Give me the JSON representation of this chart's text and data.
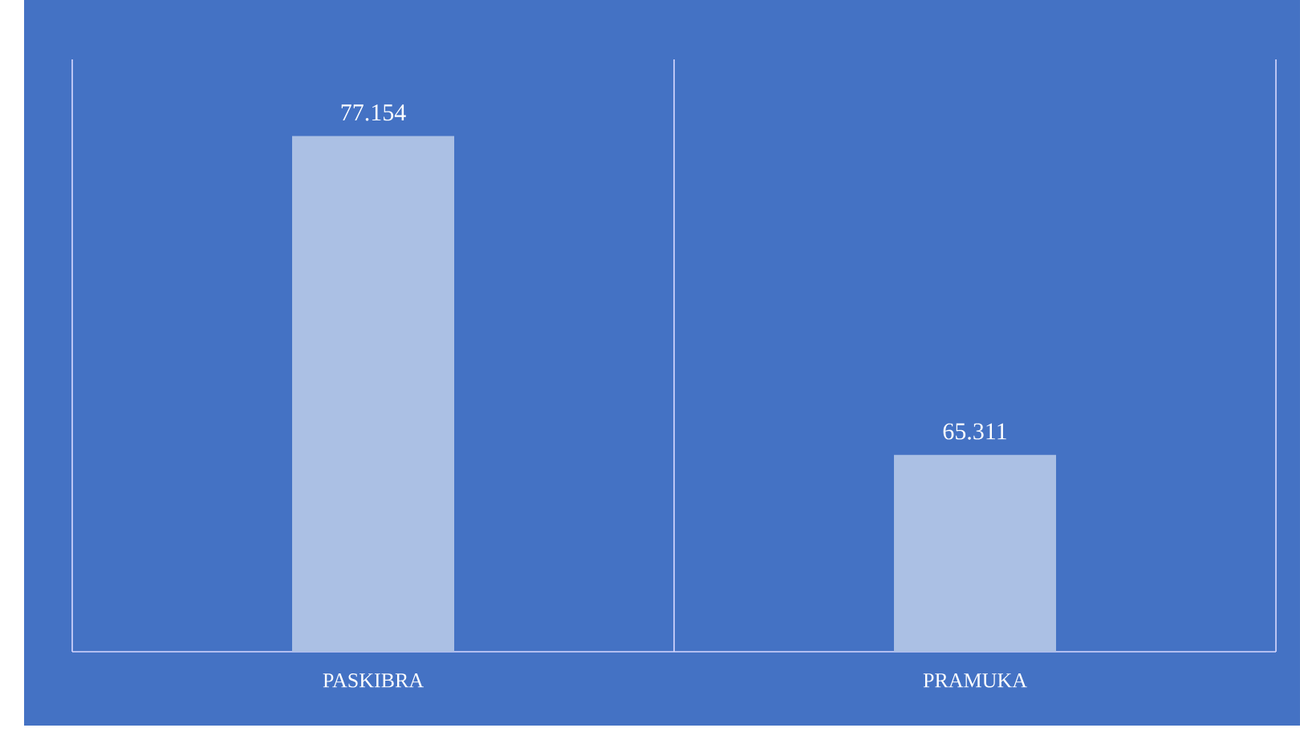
{
  "chart_data": {
    "type": "bar",
    "categories": [
      "PASKIBRA",
      "PRAMUKA"
    ],
    "values": [
      77.154,
      65.311
    ],
    "color": "#abc0e4",
    "ylim": [
      58,
      80
    ],
    "tick_labels": "x",
    "data_labels": true,
    "grid": "x"
  }
}
